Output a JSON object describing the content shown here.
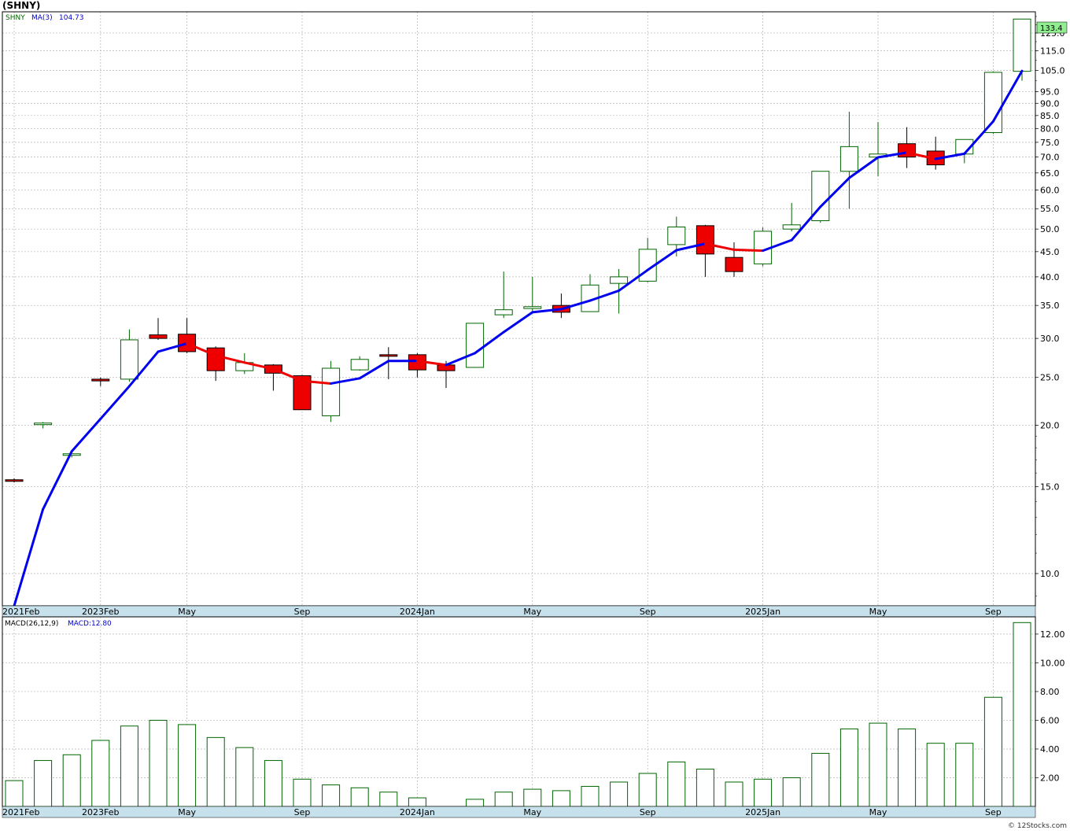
{
  "header": {
    "title": "(SHNY)",
    "symbol": "SHNY",
    "ma_label": "MA(3)",
    "ma_value": "104.73",
    "macd_label": "MACD(26,12,9)",
    "macd_value": "MACD:12.80",
    "last_price_label": "133.4",
    "credit": "© 12Stocks.com"
  },
  "colors": {
    "up_candle": "#006400",
    "down_candle": "#ee0000",
    "ma_rising": "#0000ee",
    "ma_falling": "#ee0000",
    "grid": "#b4b4b4",
    "axis_band": "#c6e1ec",
    "price_badge": "#90ee90"
  },
  "chart_data": [
    {
      "type": "candlestick",
      "title": "(SHNY)",
      "scale": "log",
      "ylim": [
        8.6,
        138
      ],
      "y_ticks": [
        "10.0",
        "15.0",
        "20.0",
        "25.0",
        "30.0",
        "35.0",
        "40.0",
        "45.0",
        "50.0",
        "55.0",
        "60.0",
        "65.0",
        "70.0",
        "75.0",
        "80.0",
        "85.0",
        "90.0",
        "95.0",
        "105.0",
        "115.0",
        "125.0"
      ],
      "x_labels": [
        "2021Feb",
        "2023Feb",
        "May",
        "Sep",
        "2024Jan",
        "May",
        "Sep",
        "2025Jan",
        "May",
        "Sep"
      ],
      "grid": true,
      "series": [
        {
          "name": "SHNY",
          "ohlc": [
            [
              15.5,
              15.6,
              15.3,
              15.4
            ],
            [
              20.1,
              20.3,
              19.7,
              20.2
            ],
            [
              17.4,
              17.6,
              17.2,
              17.5
            ],
            [
              24.8,
              25.0,
              24.0,
              24.6
            ],
            [
              24.8,
              31.3,
              24.5,
              29.8
            ],
            [
              30.5,
              33.0,
              29.8,
              30.0
            ],
            [
              30.6,
              33.0,
              28.0,
              28.2
            ],
            [
              28.7,
              28.9,
              24.6,
              25.8
            ],
            [
              25.8,
              28.0,
              25.4,
              26.8
            ],
            [
              26.5,
              26.6,
              23.5,
              25.5
            ],
            [
              25.2,
              25.3,
              21.5,
              21.5
            ],
            [
              20.9,
              27.0,
              20.3,
              26.1
            ],
            [
              25.9,
              27.6,
              25.8,
              27.2
            ],
            [
              27.8,
              28.8,
              24.8,
              27.7
            ],
            [
              27.8,
              28.0,
              25.0,
              25.9
            ],
            [
              26.5,
              27.0,
              23.8,
              25.8
            ],
            [
              26.2,
              32.2,
              26.2,
              32.2
            ],
            [
              33.5,
              41.0,
              33.0,
              34.3
            ],
            [
              34.5,
              40.0,
              34.0,
              34.8
            ],
            [
              35.0,
              37.0,
              33.0,
              33.9
            ],
            [
              34.0,
              40.5,
              34.0,
              38.5
            ],
            [
              38.8,
              41.5,
              33.7,
              40.0
            ],
            [
              39.2,
              48.0,
              39.0,
              45.5
            ],
            [
              46.5,
              53.0,
              44.0,
              50.5
            ],
            [
              50.8,
              51.0,
              40.0,
              44.5
            ],
            [
              43.8,
              47.0,
              40.0,
              41.0
            ],
            [
              42.5,
              50.4,
              42.0,
              49.5
            ],
            [
              50.0,
              56.5,
              49.5,
              51.0
            ],
            [
              52.0,
              65.5,
              51.5,
              65.5
            ],
            [
              65.5,
              86.5,
              55.0,
              73.5
            ],
            [
              70.0,
              82.5,
              64.0,
              71.0
            ],
            [
              74.5,
              80.5,
              66.5,
              70.0
            ],
            [
              72.0,
              77.0,
              66.0,
              67.5
            ],
            [
              71.0,
              76.0,
              68.0,
              76.0
            ],
            [
              78.5,
              104.5,
              78.0,
              104.0
            ],
            [
              104.5,
              133.4,
              100.0,
              133.4
            ]
          ]
        },
        {
          "name": "MA(3)",
          "values": [
            8.6,
            13.5,
            17.7,
            20.6,
            24.0,
            28.2,
            29.3,
            27.7,
            26.8,
            26.0,
            24.6,
            24.3,
            24.9,
            27.0,
            27.0,
            26.5,
            28.0,
            30.9,
            33.9,
            34.4,
            35.8,
            37.5,
            41.3,
            45.3,
            46.7,
            45.4,
            45.2,
            47.5,
            55.5,
            63.5,
            69.9,
            71.5,
            69.4,
            71.1,
            82.7,
            104.7
          ]
        }
      ]
    },
    {
      "type": "bar",
      "title": "MACD(26,12,9)",
      "ylim": [
        0,
        13.2
      ],
      "y_ticks": [
        "2.00",
        "4.00",
        "6.00",
        "8.00",
        "10.00",
        "12.00"
      ],
      "x_labels": [
        "2021Feb",
        "2023Feb",
        "May",
        "Sep",
        "2024Jan",
        "May",
        "Sep",
        "2025Jan",
        "May",
        "Sep"
      ],
      "series": [
        {
          "name": "MACD",
          "values": [
            1.8,
            3.2,
            3.6,
            4.6,
            5.6,
            6.0,
            5.7,
            4.8,
            4.1,
            3.2,
            1.9,
            1.5,
            1.3,
            1.0,
            0.6,
            0.0,
            0.5,
            1.0,
            1.2,
            1.1,
            1.4,
            1.7,
            2.3,
            3.1,
            2.6,
            1.7,
            1.9,
            2.0,
            3.7,
            5.4,
            5.8,
            5.4,
            4.4,
            4.4,
            7.6,
            12.8
          ]
        }
      ]
    }
  ]
}
